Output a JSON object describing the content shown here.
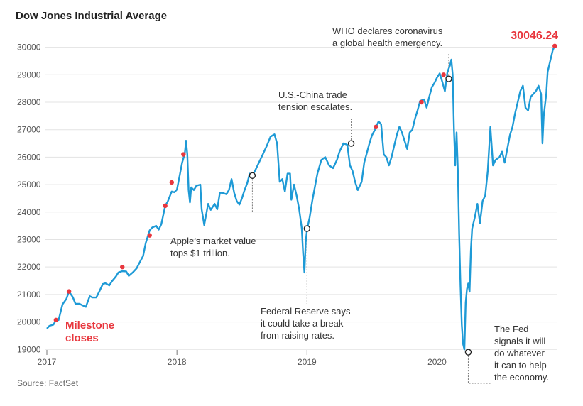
{
  "chart_data": {
    "type": "line",
    "title": "Dow Jones Industrial Average",
    "source": "Source: FactSet",
    "y_ticks": [
      "30000",
      "29000",
      "28000",
      "27000",
      "26000",
      "25000",
      "24000",
      "23000",
      "22000",
      "21000",
      "20000",
      "19000"
    ],
    "x_ticks": [
      "2017",
      "2018",
      "2019",
      "2020"
    ],
    "ylim": [
      18800,
      30300
    ],
    "xlim": [
      2017.0,
      2020.92
    ],
    "grid": "horizontal",
    "series": [
      {
        "values": [
          [
            2017.0,
            19760
          ],
          [
            2017.02,
            19860
          ],
          [
            2017.05,
            19900
          ],
          [
            2017.07,
            20070
          ],
          [
            2017.09,
            20070
          ],
          [
            2017.12,
            20640
          ],
          [
            2017.15,
            20840
          ],
          [
            2017.17,
            21110
          ],
          [
            2017.2,
            20900
          ],
          [
            2017.22,
            20660
          ],
          [
            2017.25,
            20660
          ],
          [
            2017.28,
            20590
          ],
          [
            2017.3,
            20550
          ],
          [
            2017.33,
            20940
          ],
          [
            2017.35,
            20890
          ],
          [
            2017.38,
            20890
          ],
          [
            2017.4,
            21080
          ],
          [
            2017.43,
            21380
          ],
          [
            2017.45,
            21410
          ],
          [
            2017.48,
            21330
          ],
          [
            2017.5,
            21480
          ],
          [
            2017.53,
            21650
          ],
          [
            2017.55,
            21800
          ],
          [
            2017.58,
            21850
          ],
          [
            2017.61,
            21840
          ],
          [
            2017.63,
            21680
          ],
          [
            2017.66,
            21800
          ],
          [
            2017.69,
            21950
          ],
          [
            2017.71,
            22130
          ],
          [
            2017.74,
            22400
          ],
          [
            2017.76,
            22870
          ],
          [
            2017.79,
            23330
          ],
          [
            2017.81,
            23440
          ],
          [
            2017.84,
            23500
          ],
          [
            2017.86,
            23360
          ],
          [
            2017.88,
            23560
          ],
          [
            2017.91,
            24230
          ],
          [
            2017.93,
            24390
          ],
          [
            2017.96,
            24750
          ],
          [
            2017.98,
            24720
          ],
          [
            2018.0,
            24820
          ],
          [
            2018.02,
            25300
          ],
          [
            2018.04,
            25800
          ],
          [
            2018.06,
            26120
          ],
          [
            2018.07,
            26600
          ],
          [
            2018.08,
            26100
          ],
          [
            2018.09,
            24800
          ],
          [
            2018.1,
            24350
          ],
          [
            2018.11,
            24900
          ],
          [
            2018.13,
            24800
          ],
          [
            2018.15,
            24960
          ],
          [
            2018.18,
            25000
          ],
          [
            2018.19,
            24100
          ],
          [
            2018.21,
            23530
          ],
          [
            2018.24,
            24300
          ],
          [
            2018.26,
            24080
          ],
          [
            2018.29,
            24300
          ],
          [
            2018.31,
            24100
          ],
          [
            2018.33,
            24700
          ],
          [
            2018.35,
            24700
          ],
          [
            2018.38,
            24650
          ],
          [
            2018.4,
            24800
          ],
          [
            2018.42,
            25200
          ],
          [
            2018.44,
            24700
          ],
          [
            2018.46,
            24400
          ],
          [
            2018.48,
            24270
          ],
          [
            2018.5,
            24500
          ],
          [
            2018.52,
            24800
          ],
          [
            2018.54,
            25050
          ],
          [
            2018.56,
            25400
          ],
          [
            2018.58,
            25330
          ],
          [
            2018.6,
            25500
          ],
          [
            2018.63,
            25800
          ],
          [
            2018.66,
            26100
          ],
          [
            2018.69,
            26400
          ],
          [
            2018.72,
            26750
          ],
          [
            2018.75,
            26830
          ],
          [
            2018.77,
            26500
          ],
          [
            2018.79,
            25100
          ],
          [
            2018.81,
            25200
          ],
          [
            2018.83,
            24750
          ],
          [
            2018.85,
            25400
          ],
          [
            2018.87,
            25400
          ],
          [
            2018.88,
            24450
          ],
          [
            2018.9,
            25000
          ],
          [
            2018.92,
            24600
          ],
          [
            2018.94,
            24100
          ],
          [
            2018.96,
            23400
          ],
          [
            2018.97,
            22500
          ],
          [
            2018.98,
            21800
          ],
          [
            2018.99,
            22900
          ],
          [
            2019.0,
            23350
          ],
          [
            2019.02,
            23800
          ],
          [
            2019.04,
            24400
          ],
          [
            2019.06,
            24900
          ],
          [
            2019.08,
            25400
          ],
          [
            2019.11,
            25900
          ],
          [
            2019.14,
            26000
          ],
          [
            2019.17,
            25700
          ],
          [
            2019.2,
            25600
          ],
          [
            2019.23,
            25900
          ],
          [
            2019.25,
            26200
          ],
          [
            2019.28,
            26500
          ],
          [
            2019.31,
            26450
          ],
          [
            2019.33,
            25700
          ],
          [
            2019.35,
            25500
          ],
          [
            2019.37,
            25100
          ],
          [
            2019.39,
            24800
          ],
          [
            2019.42,
            25100
          ],
          [
            2019.44,
            25800
          ],
          [
            2019.46,
            26150
          ],
          [
            2019.48,
            26500
          ],
          [
            2019.5,
            26800
          ],
          [
            2019.52,
            26980
          ],
          [
            2019.55,
            27300
          ],
          [
            2019.57,
            27200
          ],
          [
            2019.59,
            26100
          ],
          [
            2019.61,
            26000
          ],
          [
            2019.63,
            25700
          ],
          [
            2019.65,
            26000
          ],
          [
            2019.67,
            26400
          ],
          [
            2019.69,
            26800
          ],
          [
            2019.71,
            27100
          ],
          [
            2019.73,
            26900
          ],
          [
            2019.75,
            26600
          ],
          [
            2019.77,
            26300
          ],
          [
            2019.79,
            26900
          ],
          [
            2019.81,
            27000
          ],
          [
            2019.83,
            27400
          ],
          [
            2019.85,
            27700
          ],
          [
            2019.87,
            28050
          ],
          [
            2019.9,
            28100
          ],
          [
            2019.92,
            27800
          ],
          [
            2019.94,
            28200
          ],
          [
            2019.96,
            28550
          ],
          [
            2019.98,
            28700
          ],
          [
            2020.0,
            28900
          ],
          [
            2020.02,
            29050
          ],
          [
            2020.04,
            28750
          ],
          [
            2020.06,
            28400
          ],
          [
            2020.08,
            29100
          ],
          [
            2020.1,
            29350
          ],
          [
            2020.11,
            29550
          ],
          [
            2020.12,
            29000
          ],
          [
            2020.13,
            27000
          ],
          [
            2020.14,
            25700
          ],
          [
            2020.15,
            26900
          ],
          [
            2020.16,
            25500
          ],
          [
            2020.17,
            23200
          ],
          [
            2020.18,
            21300
          ],
          [
            2020.19,
            19900
          ],
          [
            2020.2,
            19200
          ],
          [
            2020.21,
            19000
          ],
          [
            2020.22,
            20700
          ],
          [
            2020.23,
            21200
          ],
          [
            2020.24,
            21400
          ],
          [
            2020.25,
            21100
          ],
          [
            2020.26,
            22600
          ],
          [
            2020.27,
            23400
          ],
          [
            2020.29,
            23800
          ],
          [
            2020.31,
            24300
          ],
          [
            2020.33,
            23600
          ],
          [
            2020.35,
            24400
          ],
          [
            2020.37,
            24600
          ],
          [
            2020.39,
            25500
          ],
          [
            2020.41,
            27100
          ],
          [
            2020.43,
            25700
          ],
          [
            2020.45,
            25900
          ],
          [
            2020.48,
            26000
          ],
          [
            2020.5,
            26200
          ],
          [
            2020.52,
            25800
          ],
          [
            2020.54,
            26300
          ],
          [
            2020.56,
            26800
          ],
          [
            2020.58,
            27100
          ],
          [
            2020.6,
            27600
          ],
          [
            2020.62,
            28000
          ],
          [
            2020.64,
            28400
          ],
          [
            2020.66,
            28600
          ],
          [
            2020.68,
            27800
          ],
          [
            2020.7,
            27700
          ],
          [
            2020.72,
            28200
          ],
          [
            2020.74,
            28300
          ],
          [
            2020.76,
            28400
          ],
          [
            2020.78,
            28600
          ],
          [
            2020.8,
            28300
          ],
          [
            2020.81,
            26500
          ],
          [
            2020.82,
            27500
          ],
          [
            2020.84,
            28300
          ],
          [
            2020.85,
            29100
          ],
          [
            2020.87,
            29500
          ],
          [
            2020.89,
            29900
          ],
          [
            2020.9,
            30000
          ],
          [
            2020.905,
            30046.24
          ]
        ]
      }
    ],
    "milestones": [
      [
        2017.07,
        20070
      ],
      [
        2017.17,
        21110
      ],
      [
        2017.58,
        22000
      ],
      [
        2017.79,
        23150
      ],
      [
        2017.91,
        24230
      ],
      [
        2017.96,
        25080
      ],
      [
        2018.05,
        26100
      ],
      [
        2019.53,
        27100
      ],
      [
        2019.88,
        28000
      ],
      [
        2020.05,
        29000
      ],
      [
        2020.905,
        30046.24
      ]
    ],
    "last_value_label": "30046.24",
    "milestone_label_lines": [
      "Milestone",
      "closes"
    ],
    "events": [
      {
        "x": 2018.58,
        "y": 25330,
        "lines": [
          "Apple’s market value",
          "tops $1 trillion."
        ]
      },
      {
        "x": 2019.0,
        "y": 23400,
        "lines": [
          "Federal Reserve says",
          "it could take a break",
          "from raising rates."
        ]
      },
      {
        "x": 2019.34,
        "y": 26500,
        "lines": [
          "U.S.-China trade",
          "tension escalates."
        ]
      },
      {
        "x": 2020.09,
        "y": 28850,
        "lines": [
          "WHO declares coronavirus",
          "a global health emergency."
        ]
      },
      {
        "x": 2020.24,
        "y": 18900,
        "lines": [
          "The Fed",
          "signals it will",
          "do whatever",
          "it can to help",
          "the economy."
        ]
      }
    ],
    "colors": {
      "line": "#1e9ad6",
      "milestone": "#e8373e",
      "grid": "#e3e3e3",
      "axis": "#555555"
    }
  }
}
